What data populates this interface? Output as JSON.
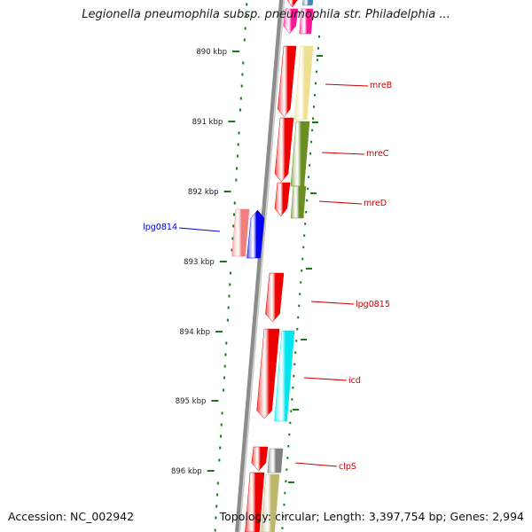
{
  "title": "Legionella pneumophila subsp. pneumophila str. Philadelphia ...",
  "footer": {
    "accession": "Accession: NC_002942",
    "summary": "Topology: circular; Length: 3,397,754 bp; Genes: 2,994"
  },
  "ruler": {
    "color": "#1a7a1a",
    "major_ticks": [
      {
        "label": "890 kbp"
      },
      {
        "label": "891 kbp"
      },
      {
        "label": "892 kbp"
      },
      {
        "label": "893 kbp"
      },
      {
        "label": "894 kbp"
      },
      {
        "label": "895 kbp"
      },
      {
        "label": "896 kbp"
      }
    ]
  },
  "genes": [
    {
      "name": "mreB",
      "label_color": "#cc0000"
    },
    {
      "name": "mreC",
      "label_color": "#cc0000"
    },
    {
      "name": "mreD",
      "label_color": "#cc0000"
    },
    {
      "name": "lpg0814",
      "label_color": "#0000cc"
    },
    {
      "name": "lpg0815",
      "label_color": "#cc0000"
    },
    {
      "name": "icd",
      "label_color": "#cc0000"
    },
    {
      "name": "clpS",
      "label_color": "#cc0000"
    }
  ],
  "colors": {
    "backbone": "#8c8c8c",
    "gene_red": "#ee0000",
    "gene_blue": "#0000ee",
    "gene_salmon": "#f08080",
    "gene_yellow": "#eee090",
    "gene_olive": "#6b8e23",
    "gene_cyan": "#00e5ee",
    "gene_gray": "#808080",
    "gene_khaki": "#bdb76b",
    "gene_pink": "#ff1493",
    "gene_steel": "#4682b4"
  }
}
